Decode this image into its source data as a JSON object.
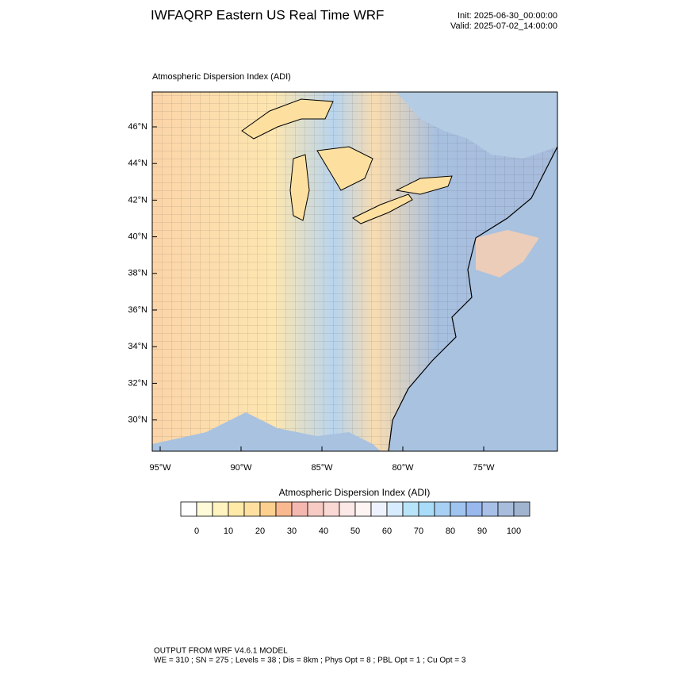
{
  "header": {
    "title": "IWFAQRP Eastern US Real Time WRF",
    "init": "Init: 2025-06-30_00:00:00",
    "valid": "Valid: 2025-07-02_14:00:00"
  },
  "map": {
    "title": "Atmospheric Dispersion Index   (ADI)",
    "lat_labels": [
      "46°N",
      "44°N",
      "42°N",
      "40°N",
      "38°N",
      "36°N",
      "34°N",
      "32°N",
      "30°N"
    ],
    "lon_labels": [
      "95°W",
      "90°W",
      "85°W",
      "80°W",
      "75°W"
    ]
  },
  "colorbar": {
    "title": "Atmospheric Dispersion Index  (ADI)",
    "colors": [
      "#ffffff",
      "#fffbd8",
      "#fff3c0",
      "#ffeaa8",
      "#ffe0a0",
      "#fdd090",
      "#f9b890",
      "#f5b8b0",
      "#f7cac4",
      "#fad8d4",
      "#fce8e6",
      "#fff4f4",
      "#eef2ff",
      "#d8ecff",
      "#b8e4fa",
      "#a8dcf8",
      "#a8d0f4",
      "#a0c4f0",
      "#98b8ee",
      "#a8c0e8",
      "#a8bcdc",
      "#a0b4d0"
    ],
    "labels": [
      "0",
      "10",
      "20",
      "30",
      "40",
      "50",
      "60",
      "70",
      "80",
      "90",
      "100"
    ]
  },
  "footer": {
    "line1": "OUTPUT FROM WRF V4.6.1 MODEL",
    "line2": "WE = 310 ; SN = 275 ; Levels = 38 ; Dis = 8km ; Phys Opt = 8 ; PBL Opt = 1 ; Cu Opt = 3"
  }
}
